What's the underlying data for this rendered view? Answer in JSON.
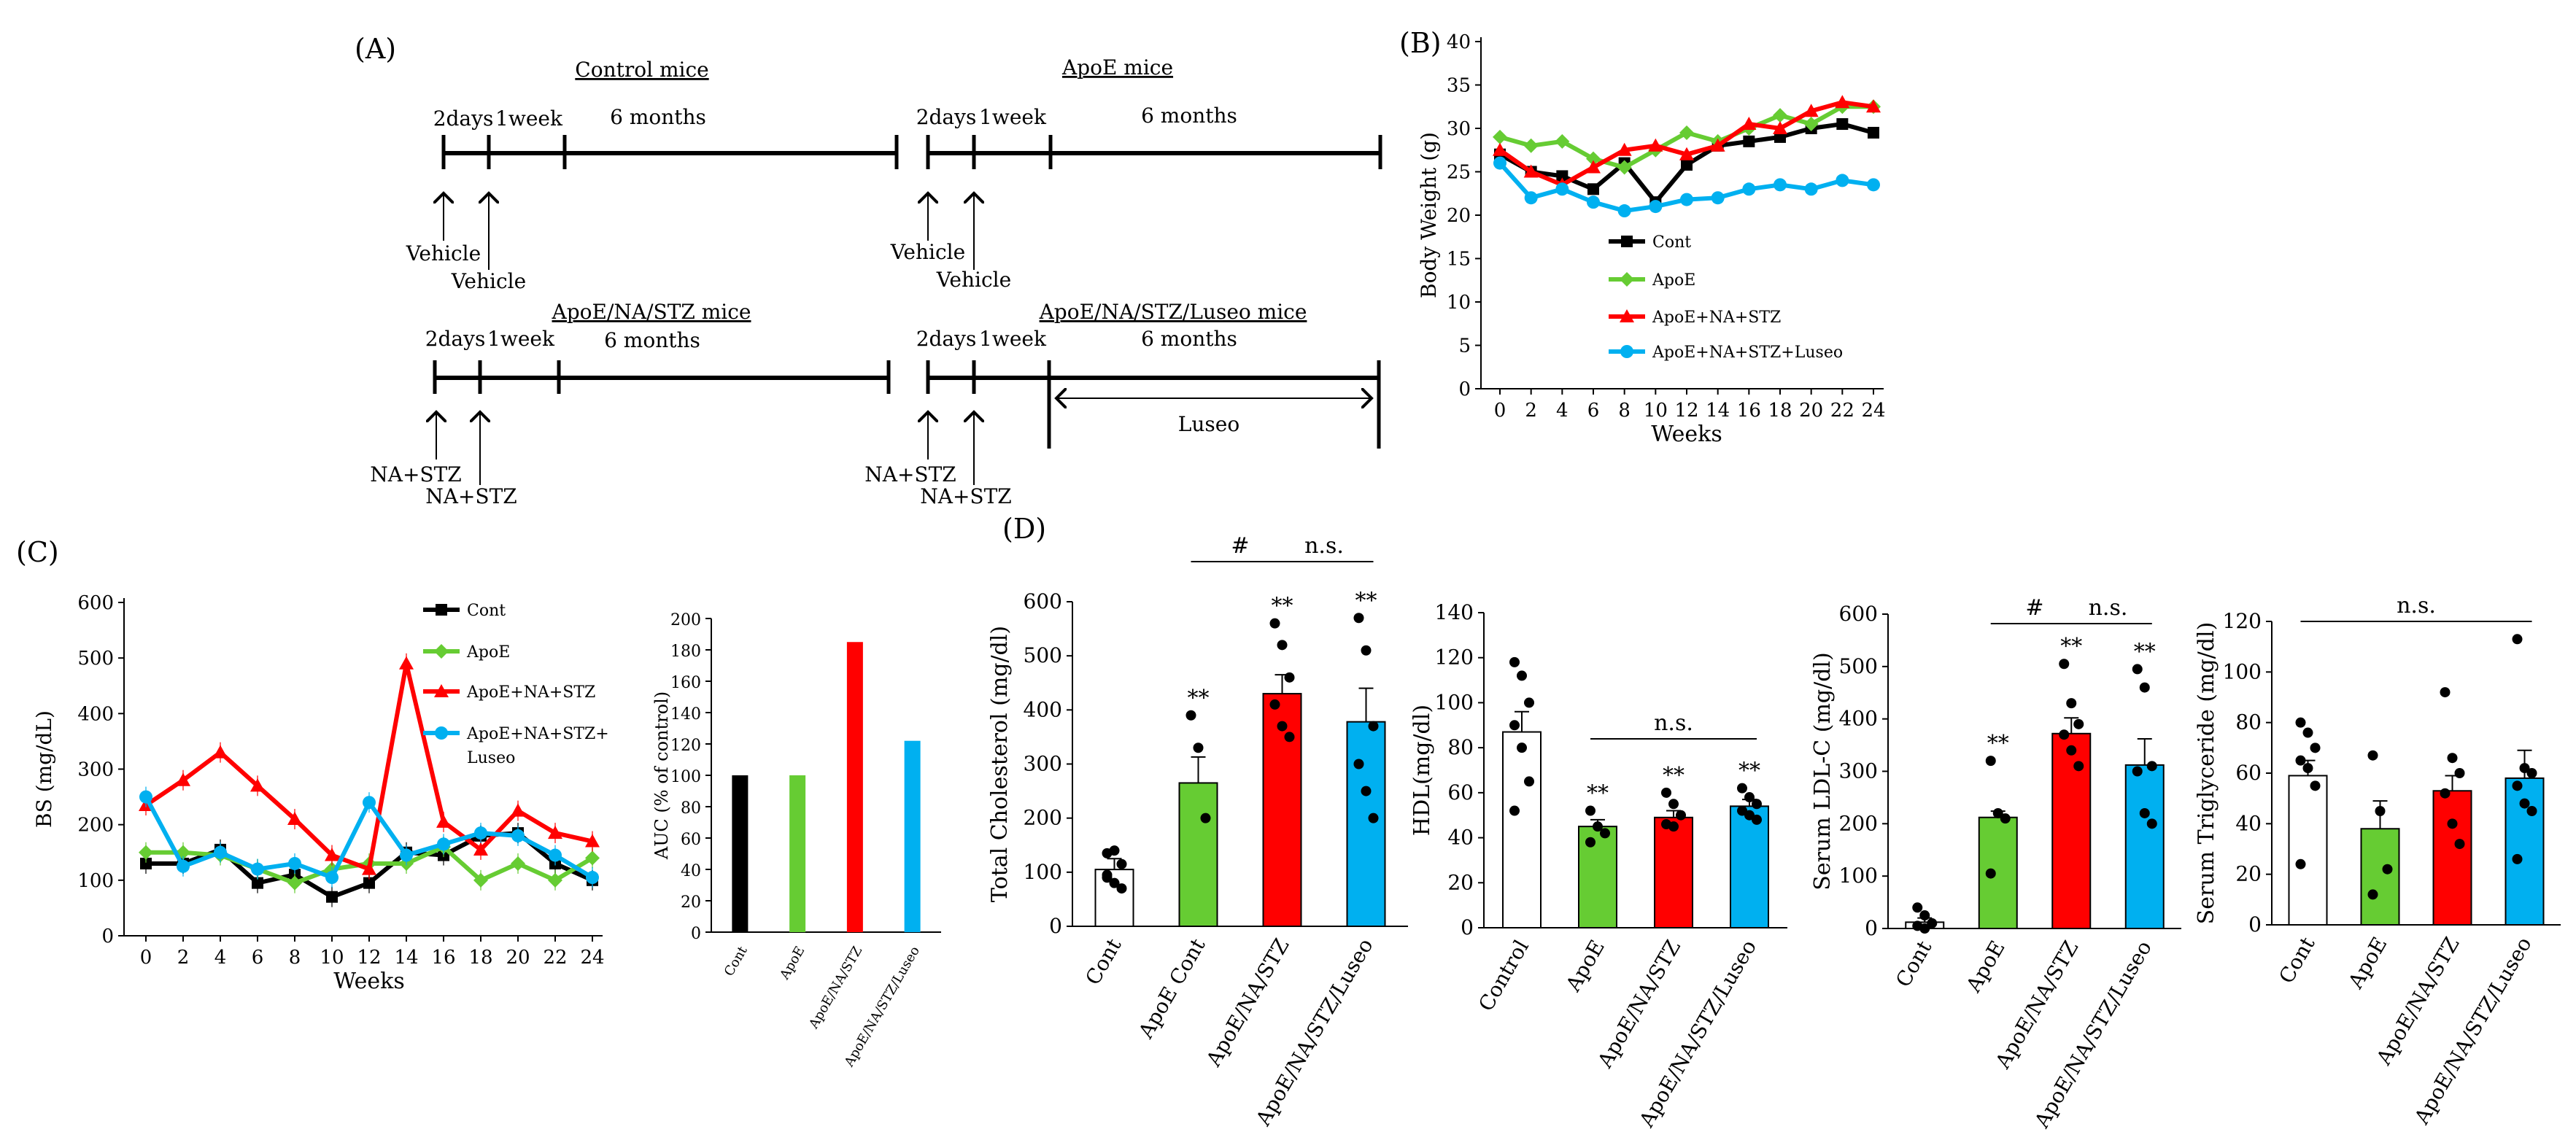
{
  "figure_labels": {
    "a": "(A)",
    "b": "(B)",
    "c": "(C)",
    "d": "(D)"
  },
  "panel_a": {
    "timelines": [
      {
        "title": "Control mice",
        "t1": "2days",
        "t2": "1week",
        "t3": "6 months",
        "arrow1": "Vehicle",
        "arrow2": "Vehicle",
        "luseo": ""
      },
      {
        "title": "ApoE mice",
        "t1": "2days",
        "t2": "1week",
        "t3": "6 months",
        "arrow1": "Vehicle",
        "arrow2": "Vehicle",
        "luseo": ""
      },
      {
        "title": "ApoE/NA/STZ mice",
        "t1": "2days",
        "t2": "1week",
        "t3": "6 months",
        "arrow1": "NA+STZ",
        "arrow2": "NA+STZ",
        "luseo": ""
      },
      {
        "title": "ApoE/NA/STZ/Luseo mice",
        "t1": "2days",
        "t2": "1week",
        "t3": "6 months",
        "arrow1": "NA+STZ",
        "arrow2": "NA+STZ",
        "luseo": "Luseo"
      }
    ]
  },
  "chart_data": [
    {
      "id": "B",
      "type": "line",
      "xlabel": "Weeks",
      "ylabel": "Body Weight (g)",
      "x": [
        0,
        2,
        4,
        6,
        8,
        10,
        12,
        14,
        16,
        18,
        20,
        22,
        24
      ],
      "xticks": [
        "0",
        "2",
        "4",
        "6",
        "8",
        "10",
        "12",
        "14",
        "16",
        "18",
        "20",
        "22",
        "24"
      ],
      "yticks": [
        "0",
        "5",
        "10",
        "15",
        "20",
        "25",
        "30",
        "35",
        "40"
      ],
      "ylim": [
        0,
        40
      ],
      "legend": [
        "Cont",
        "ApoE",
        "ApoE+NA+STZ",
        "ApoE+NA+STZ+Luseo"
      ],
      "series": [
        {
          "name": "Cont",
          "color": "#000000",
          "marker": "square",
          "values": [
            27,
            25,
            24.5,
            23,
            26,
            21.5,
            25.8,
            28,
            28.5,
            29,
            30,
            30.5,
            29.5
          ]
        },
        {
          "name": "ApoE",
          "color": "#66cc33",
          "marker": "diamond",
          "values": [
            29,
            28,
            28.5,
            26.5,
            25.5,
            27.5,
            29.5,
            28.5,
            30,
            31.5,
            30.5,
            32.5,
            32.5
          ]
        },
        {
          "name": "ApoE+NA+STZ",
          "color": "#ff0000",
          "marker": "triangle",
          "values": [
            27.5,
            25,
            23.5,
            25.5,
            27.5,
            28,
            27,
            28,
            30.5,
            30,
            32,
            33,
            32.5
          ]
        },
        {
          "name": "ApoE+NA+STZ+Luseo",
          "color": "#00b0f0",
          "marker": "circle",
          "values": [
            26,
            22,
            23,
            21.5,
            20.5,
            21,
            21.8,
            22,
            23,
            23.5,
            23,
            24,
            23.5
          ]
        }
      ]
    },
    {
      "id": "C-line",
      "type": "line",
      "xlabel": "Weeks",
      "ylabel": "BS (mg/dL)",
      "x": [
        0,
        2,
        4,
        6,
        8,
        10,
        12,
        14,
        16,
        18,
        20,
        22,
        24
      ],
      "xticks": [
        "0",
        "2",
        "4",
        "6",
        "8",
        "10",
        "12",
        "14",
        "16",
        "18",
        "20",
        "22",
        "24"
      ],
      "yticks": [
        "0",
        "100",
        "200",
        "300",
        "400",
        "500",
        "600"
      ],
      "ylim": [
        0,
        600
      ],
      "legend": [
        "Cont",
        "ApoE",
        "ApoE+NA+STZ",
        "ApoE+NA+STZ+",
        "Luseo"
      ],
      "series": [
        {
          "name": "Cont",
          "color": "#000000",
          "marker": "square",
          "values": [
            130,
            130,
            155,
            95,
            110,
            70,
            95,
            150,
            145,
            180,
            185,
            130,
            100
          ]
        },
        {
          "name": "ApoE",
          "color": "#66cc33",
          "marker": "diamond",
          "values": [
            150,
            150,
            145,
            120,
            95,
            120,
            130,
            130,
            160,
            100,
            130,
            100,
            140
          ]
        },
        {
          "name": "ApoE+NA+STZ",
          "color": "#ff0000",
          "marker": "triangle",
          "values": [
            235,
            280,
            330,
            270,
            210,
            145,
            120,
            490,
            205,
            155,
            225,
            185,
            170
          ]
        },
        {
          "name": "ApoE+NA+STZ+Luseo",
          "color": "#00b0f0",
          "marker": "circle",
          "values": [
            250,
            125,
            150,
            120,
            130,
            105,
            240,
            145,
            165,
            185,
            180,
            145,
            105
          ]
        }
      ]
    },
    {
      "id": "C-bar",
      "type": "bar",
      "ylabel": "AUC (% of control)",
      "categories": [
        "Cont",
        "ApoE",
        "ApoE/NA/STZ",
        "ApoE/NA/STZ/Luseo"
      ],
      "values": [
        100,
        100,
        185,
        122
      ],
      "colors": [
        "#000000",
        "#66cc33",
        "#ff0000",
        "#00b0f0"
      ],
      "yticks": [
        "0",
        "20",
        "40",
        "60",
        "80",
        "100",
        "120",
        "140",
        "160",
        "180",
        "200"
      ],
      "ylim": [
        0,
        200
      ]
    },
    {
      "id": "D1",
      "type": "bar",
      "ylabel": "Total Cholesterol (mg/dl)",
      "categories": [
        "Cont",
        "ApoE Cont",
        "ApoE/NA/STZ",
        "ApoE/NA/STZ/Luseo"
      ],
      "values": [
        105,
        265,
        430,
        378
      ],
      "errors": [
        20,
        48,
        35,
        62
      ],
      "colors": [
        "#ffffff",
        "#66cc33",
        "#ff0000",
        "#00b0f0"
      ],
      "points": [
        [
          135,
          140,
          115,
          95,
          80,
          70,
          90
        ],
        [
          390,
          330,
          200
        ],
        [
          560,
          520,
          460,
          410,
          370,
          350
        ],
        [
          570,
          510,
          370,
          300,
          250,
          200
        ]
      ],
      "annotations": [
        "",
        "**",
        "**",
        "**"
      ],
      "brackets": [
        {
          "label": "#"
        },
        {
          "label": "n.s."
        }
      ],
      "yticks": [
        "0",
        "100",
        "200",
        "300",
        "400",
        "500",
        "600"
      ],
      "ylim": [
        0,
        600
      ]
    },
    {
      "id": "D2",
      "type": "bar",
      "ylabel": "HDL(mg/dl)",
      "categories": [
        "Control",
        "ApoE",
        "ApoE/NA/STZ",
        "ApoE/NA/STZ/Luseo"
      ],
      "values": [
        87,
        45,
        49,
        54
      ],
      "errors": [
        9,
        3,
        3,
        3
      ],
      "colors": [
        "#ffffff",
        "#66cc33",
        "#ff0000",
        "#00b0f0"
      ],
      "points": [
        [
          118,
          112,
          100,
          90,
          80,
          65,
          52
        ],
        [
          52,
          45,
          42,
          38
        ],
        [
          60,
          55,
          50,
          46,
          45
        ],
        [
          62,
          58,
          55,
          52,
          50,
          48
        ]
      ],
      "annotations": [
        "",
        "**",
        "**",
        "**"
      ],
      "brackets": [
        {
          "label": "n.s."
        }
      ],
      "yticks": [
        "0",
        "20",
        "40",
        "60",
        "80",
        "100",
        "120",
        "140"
      ],
      "ylim": [
        0,
        140
      ]
    },
    {
      "id": "D3",
      "type": "bar",
      "ylabel": "Serum LDL-C (mg/dl)",
      "categories": [
        "Cont",
        "ApoE",
        "ApoE/NA/STZ",
        "ApoE/NA/STZ/Luseo"
      ],
      "values": [
        12,
        212,
        372,
        312
      ],
      "errors": [
        8,
        12,
        30,
        50
      ],
      "colors": [
        "#ffffff",
        "#66cc33",
        "#ff0000",
        "#00b0f0"
      ],
      "points": [
        [
          40,
          25,
          10,
          5,
          0
        ],
        [
          320,
          220,
          210,
          105
        ],
        [
          505,
          430,
          390,
          370,
          340,
          310
        ],
        [
          495,
          460,
          310,
          300,
          220,
          200
        ]
      ],
      "annotations": [
        "",
        "**",
        "**",
        "**"
      ],
      "brackets": [
        {
          "label": "#"
        },
        {
          "label": "n.s."
        }
      ],
      "yticks": [
        "0",
        "100",
        "200",
        "300",
        "400",
        "500",
        "600"
      ],
      "ylim": [
        0,
        600
      ]
    },
    {
      "id": "D4",
      "type": "bar",
      "ylabel": "Serum Triglyceride (mg/dl)",
      "categories": [
        "Cont",
        "ApoE",
        "ApoE/NA/STZ",
        "ApoE/NA/STZ/Luseo"
      ],
      "values": [
        59,
        38,
        53,
        58
      ],
      "errors": [
        6,
        11,
        6,
        11
      ],
      "colors": [
        "#ffffff",
        "#66cc33",
        "#ff0000",
        "#00b0f0"
      ],
      "points": [
        [
          80,
          76,
          70,
          65,
          62,
          55,
          24
        ],
        [
          67,
          45,
          22,
          12
        ],
        [
          92,
          66,
          60,
          52,
          40,
          32
        ],
        [
          113,
          62,
          60,
          55,
          48,
          45,
          26
        ]
      ],
      "annotations": [
        "",
        "",
        "",
        ""
      ],
      "brackets": [
        {
          "label": "n.s."
        }
      ],
      "yticks": [
        "0",
        "20",
        "40",
        "60",
        "80",
        "100",
        "120"
      ],
      "ylim": [
        0,
        120
      ]
    }
  ]
}
